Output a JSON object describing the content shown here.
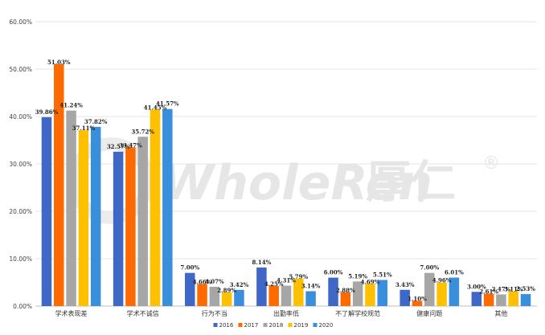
{
  "watermark": {
    "brand": "WholeRen",
    "brand_cn": "厚仁",
    "mark": "®"
  },
  "colors": {
    "2016": "#3f68c6",
    "2017": "#ff6a00",
    "2018": "#a6a6a6",
    "2019": "#ffc000",
    "2020": "#3a8fdc"
  },
  "chart_data": {
    "type": "bar",
    "categories": [
      "学术表现差",
      "学术不诚信",
      "行为不当",
      "出勤率低",
      "不了解学校规范",
      "健康问题",
      "其他"
    ],
    "series": [
      {
        "name": "2016",
        "values": [
          39.86,
          32.57,
          7.0,
          8.14,
          6.0,
          3.43,
          3.0
        ],
        "labels": [
          "39.86%",
          "32.57%",
          "7.00%",
          "8.14%",
          "6.00%",
          "3.43%",
          "3.00%"
        ]
      },
      {
        "name": "2017",
        "values": [
          51.03,
          33.47,
          4.66,
          4.25,
          2.88,
          1.1,
          2.61
        ],
        "labels": [
          "51.03%",
          "33.47%",
          "4.66%",
          "4.25%",
          "2.88%",
          "1.10%",
          "2.61%"
        ]
      },
      {
        "name": "2018",
        "values": [
          41.24,
          35.72,
          4.07,
          4.31,
          5.19,
          7.0,
          2.47
        ],
        "labels": [
          "41.24%",
          "35.72%",
          "4.07%",
          "4.31%",
          "5.19%",
          "7.00%",
          "2.47%"
        ]
      },
      {
        "name": "2019",
        "values": [
          37.11,
          41.45,
          2.89,
          5.79,
          4.69,
          4.96,
          3.11
        ],
        "labels": [
          "37.11%",
          "41.45%",
          "2.89%",
          "5.79%",
          "4.69%",
          "4.96%",
          "3.11%"
        ]
      },
      {
        "name": "2020",
        "values": [
          37.82,
          41.57,
          3.42,
          3.14,
          5.51,
          6.01,
          2.53
        ],
        "labels": [
          "37.82%",
          "41.57%",
          "3.42%",
          "3.14%",
          "5.51%",
          "6.01%",
          "2.53%"
        ]
      }
    ],
    "yticks": [
      "0.00%",
      "10.00%",
      "20.00%",
      "30.00%",
      "40.00%",
      "50.00%",
      "60.00%"
    ],
    "ylim": [
      0,
      60
    ],
    "grid": true,
    "legend": "bottom"
  }
}
